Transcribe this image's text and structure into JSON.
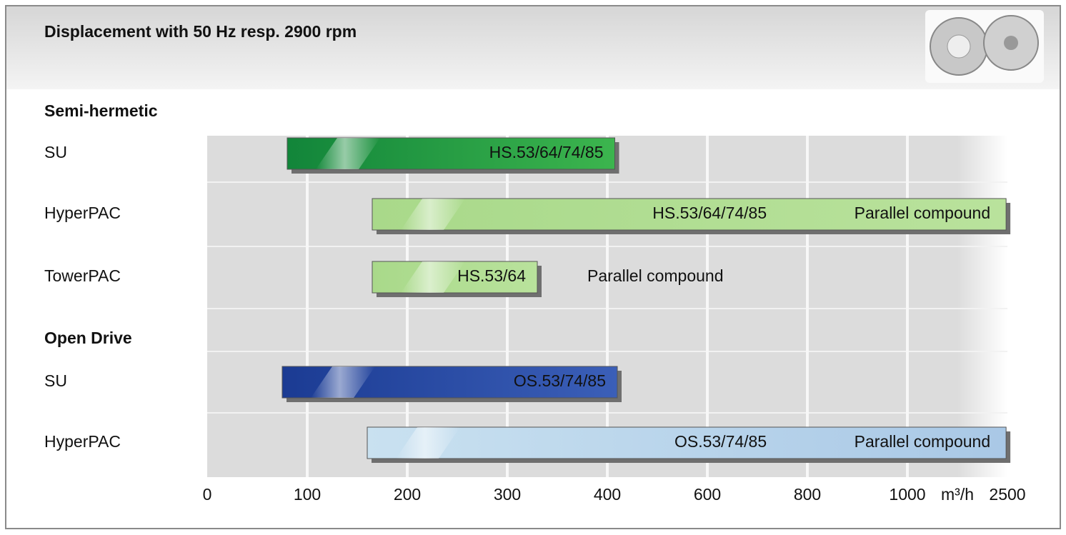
{
  "chart_data": {
    "type": "range-bar",
    "title": "Displacement with 50 Hz resp. 2900 rpm",
    "x_unit": "m³/h",
    "xticks": [
      0,
      100,
      200,
      300,
      400,
      600,
      800,
      1000,
      2500
    ],
    "xlim": [
      0,
      2500
    ],
    "grid": true,
    "groups": [
      {
        "label": "Semi-hermetic",
        "rows": [
          {
            "label": "SU",
            "start": 80,
            "end": 415,
            "text": "HS.53/64/74/85",
            "note": null,
            "color": "#12853a",
            "color2": "#3cb54e",
            "text_color": "#ffffff"
          },
          {
            "label": "HyperPAC",
            "start": 165,
            "end": 2480,
            "text": "HS.53/64/74/85",
            "note": "Parallel compound",
            "color": "#a9d98a",
            "color2": "#b9e29c",
            "text_color": "#111111"
          },
          {
            "label": "TowerPAC",
            "start": 165,
            "end": 330,
            "text": "HS.53/64",
            "note": "Parallel compound",
            "color": "#a9d98a",
            "color2": "#b9e29c",
            "text_color": "#111111"
          }
        ]
      },
      {
        "label": "Open Drive",
        "rows": [
          {
            "label": "SU",
            "start": 75,
            "end": 420,
            "text": "OS.53/74/85",
            "note": null,
            "color": "#1b3b93",
            "color2": "#3b5fb8",
            "text_color": "#ffffff"
          },
          {
            "label": "HyperPAC",
            "start": 160,
            "end": 2480,
            "text": "OS.53/74/85",
            "note": "Parallel compound",
            "color": "#c9e1f0",
            "color2": "#a9c8e6",
            "text_color": "#111111"
          }
        ]
      }
    ]
  }
}
